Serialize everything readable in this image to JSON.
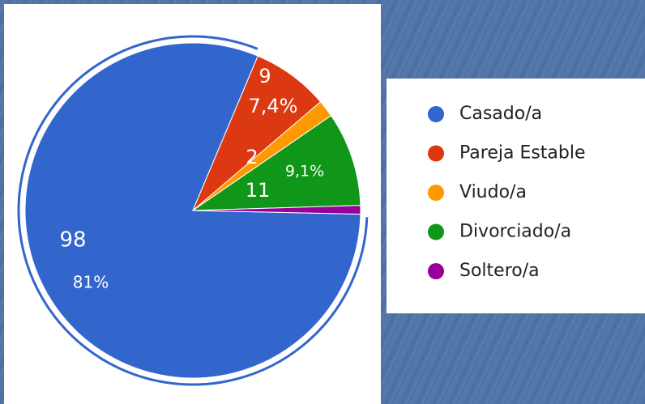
{
  "chart_data": {
    "type": "pie",
    "categories": [
      "Casado/a",
      "Pareja Estable",
      "Viudo/a",
      "Divorciado/a",
      "Soltero/a"
    ],
    "values": [
      98,
      9,
      2,
      11,
      1
    ],
    "percents": [
      81,
      7.4,
      null,
      9.1,
      null
    ],
    "percent_labels": [
      "81%",
      "7,4%",
      null,
      "9,1%",
      null
    ],
    "colors": [
      "#3366cc",
      "#dc3912",
      "#ff9900",
      "#109618",
      "#990099"
    ],
    "legend": "right"
  }
}
